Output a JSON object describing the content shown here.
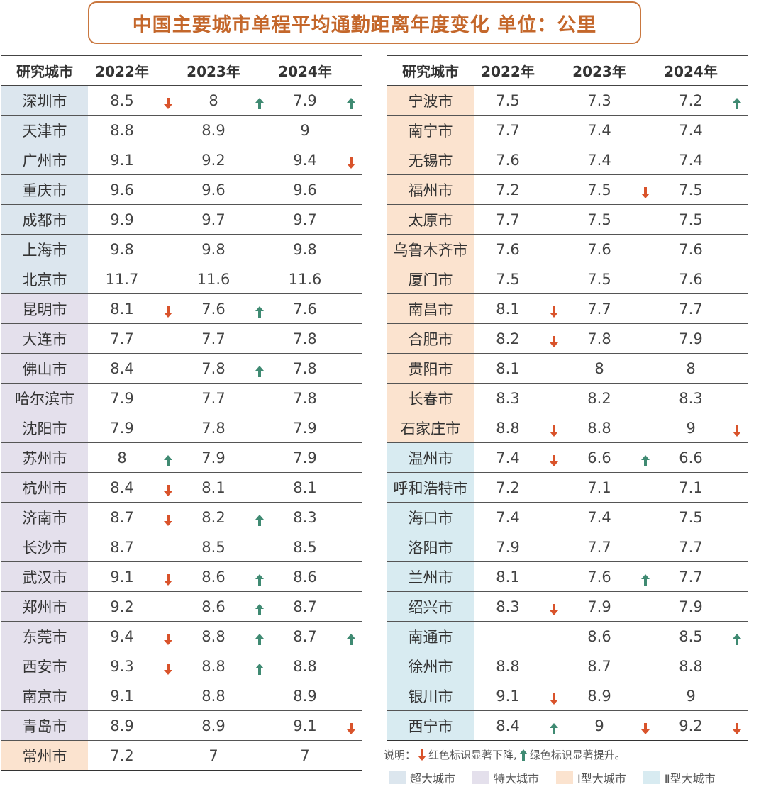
{
  "title": "中国主要城市单程平均通勤距离年度变化  单位：公里",
  "headers": {
    "city": "研究城市",
    "y2022": "2022年",
    "y2023": "2023年",
    "y2024": "2024年"
  },
  "colors": {
    "super": "#dce6ee",
    "mega": "#e4e0ec",
    "one": "#fbe3cf",
    "two": "#d8ebf1",
    "down_arrow": "#d9532b",
    "up_arrow": "#3f8a72",
    "title": "#c4672b"
  },
  "left_rows": [
    {
      "city": "深圳市",
      "tier": "super",
      "v2022": "8.5",
      "a2022": "down",
      "v2023": "8",
      "a2023": "up",
      "v2024": "7.9",
      "a2024": "up"
    },
    {
      "city": "天津市",
      "tier": "super",
      "v2022": "8.8",
      "a2022": "",
      "v2023": "8.9",
      "a2023": "",
      "v2024": "9",
      "a2024": ""
    },
    {
      "city": "广州市",
      "tier": "super",
      "v2022": "9.1",
      "a2022": "",
      "v2023": "9.2",
      "a2023": "",
      "v2024": "9.4",
      "a2024": "down"
    },
    {
      "city": "重庆市",
      "tier": "super",
      "v2022": "9.6",
      "a2022": "",
      "v2023": "9.6",
      "a2023": "",
      "v2024": "9.6",
      "a2024": ""
    },
    {
      "city": "成都市",
      "tier": "super",
      "v2022": "9.9",
      "a2022": "",
      "v2023": "9.7",
      "a2023": "",
      "v2024": "9.7",
      "a2024": ""
    },
    {
      "city": "上海市",
      "tier": "super",
      "v2022": "9.8",
      "a2022": "",
      "v2023": "9.8",
      "a2023": "",
      "v2024": "9.8",
      "a2024": ""
    },
    {
      "city": "北京市",
      "tier": "super",
      "v2022": "11.7",
      "a2022": "",
      "v2023": "11.6",
      "a2023": "",
      "v2024": "11.6",
      "a2024": ""
    },
    {
      "city": "昆明市",
      "tier": "mega",
      "v2022": "8.1",
      "a2022": "down",
      "v2023": "7.6",
      "a2023": "up",
      "v2024": "7.6",
      "a2024": ""
    },
    {
      "city": "大连市",
      "tier": "mega",
      "v2022": "7.7",
      "a2022": "",
      "v2023": "7.7",
      "a2023": "",
      "v2024": "7.8",
      "a2024": ""
    },
    {
      "city": "佛山市",
      "tier": "mega",
      "v2022": "8.4",
      "a2022": "",
      "v2023": "7.8",
      "a2023": "up",
      "v2024": "7.8",
      "a2024": ""
    },
    {
      "city": "哈尔滨市",
      "tier": "mega",
      "v2022": "7.9",
      "a2022": "",
      "v2023": "7.7",
      "a2023": "",
      "v2024": "7.8",
      "a2024": ""
    },
    {
      "city": "沈阳市",
      "tier": "mega",
      "v2022": "7.9",
      "a2022": "",
      "v2023": "7.8",
      "a2023": "",
      "v2024": "7.9",
      "a2024": ""
    },
    {
      "city": "苏州市",
      "tier": "mega",
      "v2022": "8",
      "a2022": "up",
      "v2023": "7.9",
      "a2023": "",
      "v2024": "7.9",
      "a2024": ""
    },
    {
      "city": "杭州市",
      "tier": "mega",
      "v2022": "8.4",
      "a2022": "down",
      "v2023": "8.1",
      "a2023": "",
      "v2024": "8.1",
      "a2024": ""
    },
    {
      "city": "济南市",
      "tier": "mega",
      "v2022": "8.7",
      "a2022": "down",
      "v2023": "8.2",
      "a2023": "up",
      "v2024": "8.3",
      "a2024": ""
    },
    {
      "city": "长沙市",
      "tier": "mega",
      "v2022": "8.7",
      "a2022": "",
      "v2023": "8.5",
      "a2023": "",
      "v2024": "8.5",
      "a2024": ""
    },
    {
      "city": "武汉市",
      "tier": "mega",
      "v2022": "9.1",
      "a2022": "down",
      "v2023": "8.6",
      "a2023": "up",
      "v2024": "8.6",
      "a2024": ""
    },
    {
      "city": "郑州市",
      "tier": "mega",
      "v2022": "9.2",
      "a2022": "",
      "v2023": "8.6",
      "a2023": "up",
      "v2024": "8.7",
      "a2024": ""
    },
    {
      "city": "东莞市",
      "tier": "mega",
      "v2022": "9.4",
      "a2022": "down",
      "v2023": "8.8",
      "a2023": "up",
      "v2024": "8.7",
      "a2024": "up"
    },
    {
      "city": "西安市",
      "tier": "mega",
      "v2022": "9.3",
      "a2022": "down",
      "v2023": "8.8",
      "a2023": "up",
      "v2024": "8.8",
      "a2024": ""
    },
    {
      "city": "南京市",
      "tier": "mega",
      "v2022": "9.1",
      "a2022": "",
      "v2023": "8.8",
      "a2023": "",
      "v2024": "8.9",
      "a2024": ""
    },
    {
      "city": "青岛市",
      "tier": "mega",
      "v2022": "8.9",
      "a2022": "",
      "v2023": "8.9",
      "a2023": "",
      "v2024": "9.1",
      "a2024": "down"
    },
    {
      "city": "常州市",
      "tier": "one",
      "v2022": "7.2",
      "a2022": "",
      "v2023": "7",
      "a2023": "",
      "v2024": "7",
      "a2024": ""
    }
  ],
  "right_rows": [
    {
      "city": "宁波市",
      "tier": "one",
      "v2022": "7.5",
      "a2022": "",
      "v2023": "7.3",
      "a2023": "",
      "v2024": "7.2",
      "a2024": "up"
    },
    {
      "city": "南宁市",
      "tier": "one",
      "v2022": "7.7",
      "a2022": "",
      "v2023": "7.4",
      "a2023": "",
      "v2024": "7.4",
      "a2024": ""
    },
    {
      "city": "无锡市",
      "tier": "one",
      "v2022": "7.6",
      "a2022": "",
      "v2023": "7.4",
      "a2023": "",
      "v2024": "7.4",
      "a2024": ""
    },
    {
      "city": "福州市",
      "tier": "one",
      "v2022": "7.2",
      "a2022": "",
      "v2023": "7.5",
      "a2023": "down",
      "v2024": "7.5",
      "a2024": ""
    },
    {
      "city": "太原市",
      "tier": "one",
      "v2022": "7.7",
      "a2022": "",
      "v2023": "7.5",
      "a2023": "",
      "v2024": "7.5",
      "a2024": ""
    },
    {
      "city": "乌鲁木齐市",
      "tier": "one",
      "v2022": "7.6",
      "a2022": "",
      "v2023": "7.6",
      "a2023": "",
      "v2024": "7.6",
      "a2024": ""
    },
    {
      "city": "厦门市",
      "tier": "one",
      "v2022": "7.5",
      "a2022": "",
      "v2023": "7.5",
      "a2023": "",
      "v2024": "7.6",
      "a2024": ""
    },
    {
      "city": "南昌市",
      "tier": "one",
      "v2022": "8.1",
      "a2022": "down",
      "v2023": "7.7",
      "a2023": "",
      "v2024": "7.7",
      "a2024": ""
    },
    {
      "city": "合肥市",
      "tier": "one",
      "v2022": "8.2",
      "a2022": "down",
      "v2023": "7.8",
      "a2023": "",
      "v2024": "7.9",
      "a2024": ""
    },
    {
      "city": "贵阳市",
      "tier": "one",
      "v2022": "8.1",
      "a2022": "",
      "v2023": "8",
      "a2023": "",
      "v2024": "8",
      "a2024": ""
    },
    {
      "city": "长春市",
      "tier": "one",
      "v2022": "8.3",
      "a2022": "",
      "v2023": "8.2",
      "a2023": "",
      "v2024": "8.3",
      "a2024": ""
    },
    {
      "city": "石家庄市",
      "tier": "one",
      "v2022": "8.8",
      "a2022": "down",
      "v2023": "8.8",
      "a2023": "",
      "v2024": "9",
      "a2024": "down"
    },
    {
      "city": "温州市",
      "tier": "two",
      "v2022": "7.4",
      "a2022": "down",
      "v2023": "6.6",
      "a2023": "up",
      "v2024": "6.6",
      "a2024": ""
    },
    {
      "city": "呼和浩特市",
      "tier": "two",
      "v2022": "7.2",
      "a2022": "",
      "v2023": "7.1",
      "a2023": "",
      "v2024": "7.1",
      "a2024": ""
    },
    {
      "city": "海口市",
      "tier": "two",
      "v2022": "7.4",
      "a2022": "",
      "v2023": "7.4",
      "a2023": "",
      "v2024": "7.5",
      "a2024": ""
    },
    {
      "city": "洛阳市",
      "tier": "two",
      "v2022": "7.9",
      "a2022": "",
      "v2023": "7.7",
      "a2023": "",
      "v2024": "7.7",
      "a2024": ""
    },
    {
      "city": "兰州市",
      "tier": "two",
      "v2022": "8.1",
      "a2022": "",
      "v2023": "7.6",
      "a2023": "up",
      "v2024": "7.7",
      "a2024": ""
    },
    {
      "city": "绍兴市",
      "tier": "two",
      "v2022": "8.3",
      "a2022": "down",
      "v2023": "7.9",
      "a2023": "",
      "v2024": "7.9",
      "a2024": ""
    },
    {
      "city": "南通市",
      "tier": "two",
      "v2022": "",
      "a2022": "",
      "v2023": "8.6",
      "a2023": "",
      "v2024": "8.5",
      "a2024": "up"
    },
    {
      "city": "徐州市",
      "tier": "two",
      "v2022": "8.8",
      "a2022": "",
      "v2023": "8.7",
      "a2023": "",
      "v2024": "8.8",
      "a2024": ""
    },
    {
      "city": "银川市",
      "tier": "two",
      "v2022": "9.1",
      "a2022": "down",
      "v2023": "8.9",
      "a2023": "",
      "v2024": "9",
      "a2024": ""
    },
    {
      "city": "西宁市",
      "tier": "two",
      "v2022": "8.4",
      "a2022": "up",
      "v2023": "9",
      "a2023": "down",
      "v2024": "9.2",
      "a2024": "down"
    }
  ],
  "note": {
    "prefix": "说明：",
    "down_text": "红色标识显著下降,",
    "up_text": "绿色标识显著提升。"
  },
  "legend": [
    {
      "tier": "super",
      "label": "超大城市"
    },
    {
      "tier": "mega",
      "label": "特大城市"
    },
    {
      "tier": "one",
      "label": "Ⅰ型大城市"
    },
    {
      "tier": "two",
      "label": "Ⅱ型大城市"
    }
  ]
}
